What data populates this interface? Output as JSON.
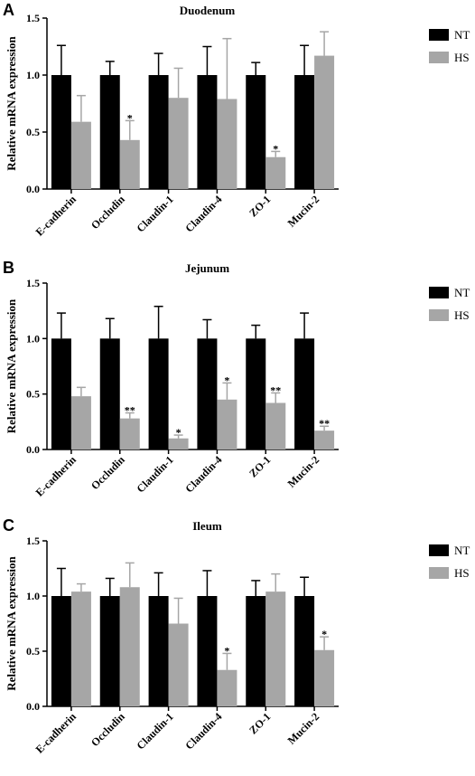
{
  "colors": {
    "NT": "#000000",
    "HS": "#a6a6a6"
  },
  "chart_data": [
    {
      "panel_letter": "A",
      "type": "bar",
      "title": "Duodenum",
      "ylabel": "Relative mRNA expression",
      "xlabel": "",
      "ylim": [
        0,
        1.5
      ],
      "yticks": [
        "0.0",
        "0.5",
        "1.0",
        "1.5"
      ],
      "categories": [
        "E-cadherin",
        "Occludin",
        "Claudin-1",
        "Claudin-4",
        "ZO-1",
        "Mucin-2"
      ],
      "legend": "right",
      "series": [
        {
          "name": "NT",
          "values": [
            1.0,
            1.0,
            1.0,
            1.0,
            1.0,
            1.0
          ],
          "errors": [
            0.26,
            0.12,
            0.19,
            0.25,
            0.11,
            0.26
          ],
          "sig": [
            "",
            "",
            "",
            "",
            "",
            ""
          ]
        },
        {
          "name": "HS",
          "values": [
            0.59,
            0.43,
            0.8,
            0.79,
            0.28,
            1.17
          ],
          "errors": [
            0.23,
            0.17,
            0.26,
            0.53,
            0.05,
            0.21
          ],
          "sig": [
            "",
            "*",
            "",
            "",
            "*",
            ""
          ]
        }
      ]
    },
    {
      "panel_letter": "B",
      "type": "bar",
      "title": "Jejunum",
      "ylabel": "Relative mRNA expression",
      "xlabel": "",
      "ylim": [
        0,
        1.5
      ],
      "yticks": [
        "0.0",
        "0.5",
        "1.0",
        "1.5"
      ],
      "categories": [
        "E-cadherin",
        "Occludin",
        "Claudin-1",
        "Claudin-4",
        "ZO-1",
        "Mucin-2"
      ],
      "legend": "right",
      "series": [
        {
          "name": "NT",
          "values": [
            1.0,
            1.0,
            1.0,
            1.0,
            1.0,
            1.0
          ],
          "errors": [
            0.23,
            0.18,
            0.29,
            0.17,
            0.12,
            0.23
          ],
          "sig": [
            "",
            "",
            "",
            "",
            "",
            ""
          ]
        },
        {
          "name": "HS",
          "values": [
            0.48,
            0.28,
            0.1,
            0.45,
            0.42,
            0.17
          ],
          "errors": [
            0.08,
            0.05,
            0.03,
            0.15,
            0.09,
            0.04
          ],
          "sig": [
            "",
            "**",
            "*",
            "*",
            "**",
            "**"
          ]
        }
      ]
    },
    {
      "panel_letter": "C",
      "type": "bar",
      "title": "Ileum",
      "ylabel": "Relative mRNA expression",
      "xlabel": "",
      "ylim": [
        0,
        1.5
      ],
      "yticks": [
        "0.0",
        "0.5",
        "1.0",
        "1.5"
      ],
      "categories": [
        "E-cadherin",
        "Occludin",
        "Claudin-1",
        "Claudin-4",
        "ZO-1",
        "Mucin-2"
      ],
      "legend": "right",
      "series": [
        {
          "name": "NT",
          "values": [
            1.0,
            1.0,
            1.0,
            1.0,
            1.0,
            1.0
          ],
          "errors": [
            0.25,
            0.16,
            0.21,
            0.23,
            0.14,
            0.17
          ],
          "sig": [
            "",
            "",
            "",
            "",
            "",
            ""
          ]
        },
        {
          "name": "HS",
          "values": [
            1.04,
            1.08,
            0.75,
            0.33,
            1.04,
            0.51
          ],
          "errors": [
            0.07,
            0.22,
            0.23,
            0.15,
            0.16,
            0.12
          ],
          "sig": [
            "",
            "",
            "",
            "*",
            "",
            "*"
          ]
        }
      ]
    }
  ]
}
